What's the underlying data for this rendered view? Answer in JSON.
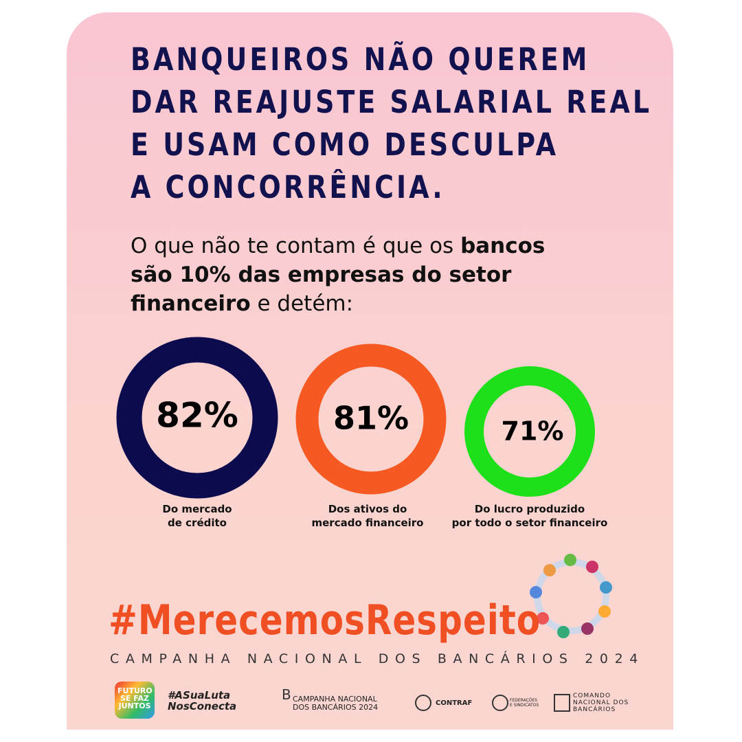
{
  "header": {
    "title_lines": [
      "BANQUEIROS NÃO QUEREM",
      "DAR REAJUSTE SALARIAL REAL",
      "E USAM COMO DESCULPA",
      "A CONCORRÊNCIA."
    ]
  },
  "intro": {
    "lines": [
      [
        "O que não te contam é que os ",
        "bancos"
      ],
      [
        "são 10% das empresas do setor"
      ],
      [
        "financeiro",
        " e detém:"
      ]
    ]
  },
  "stats": [
    {
      "label": "82%",
      "caption": [
        "Do mercado",
        "de crédito"
      ]
    },
    {
      "label": "81%",
      "caption": [
        "Dos ativos do",
        "mercado financeiro"
      ]
    },
    {
      "label": "71%",
      "caption": [
        "Do lucro produzido",
        "por todo o setor financeiro"
      ]
    }
  ],
  "hashtag": "#MerecemosRespeito",
  "campaign": "CAMPANHA NACIONAL DOS BANCÁRIOS 2024",
  "footer": {
    "logos": [
      [
        "FUTURO",
        "SE FAZ",
        "JUNTOS"
      ],
      [
        "#ASuaLuta",
        "NosConecta"
      ],
      [
        "CAMPANHA NACIONAL",
        "DOS BANCÁRIOS 2024"
      ],
      [
        "CONTRAF"
      ],
      [
        "FEDERAÇÕES",
        "E SINDICATOS"
      ],
      [
        "COMANDO",
        "NACIONAL DOS",
        "BANCÁRIOS"
      ]
    ]
  }
}
